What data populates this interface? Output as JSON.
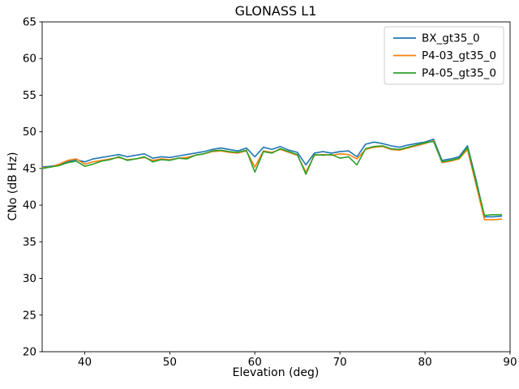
{
  "chart_data": {
    "type": "line",
    "title": "GLONASS L1",
    "xlabel": "Elevation (deg)",
    "ylabel": "CNo (dB Hz)",
    "xlim": [
      35,
      90
    ],
    "ylim": [
      20,
      65
    ],
    "xticks": [
      40,
      50,
      60,
      70,
      80,
      90
    ],
    "yticks": [
      20,
      25,
      30,
      35,
      40,
      45,
      50,
      55,
      60,
      65
    ],
    "grid": false,
    "legend_position": "upper right",
    "x": [
      35,
      36,
      37,
      38,
      39,
      40,
      41,
      42,
      43,
      44,
      45,
      46,
      47,
      48,
      49,
      50,
      51,
      52,
      53,
      54,
      55,
      56,
      57,
      58,
      59,
      60,
      61,
      62,
      63,
      64,
      65,
      66,
      67,
      68,
      69,
      70,
      71,
      72,
      73,
      74,
      75,
      76,
      77,
      78,
      79,
      80,
      81,
      82,
      83,
      84,
      85,
      86,
      87,
      88,
      89
    ],
    "series": [
      {
        "name": "BX_gt35_0",
        "color": "#1f77b4",
        "values": [
          45.2,
          45.3,
          45.5,
          45.9,
          46.2,
          45.9,
          46.3,
          46.5,
          46.7,
          46.9,
          46.6,
          46.8,
          47.0,
          46.4,
          46.6,
          46.5,
          46.7,
          46.9,
          47.1,
          47.3,
          47.6,
          47.8,
          47.6,
          47.4,
          47.8,
          46.6,
          47.9,
          47.6,
          48.0,
          47.5,
          47.2,
          45.5,
          47.1,
          47.3,
          47.1,
          47.3,
          47.4,
          46.6,
          48.3,
          48.6,
          48.4,
          48.1,
          47.9,
          48.2,
          48.4,
          48.6,
          49.0,
          46.1,
          46.3,
          46.6,
          48.1,
          43.5,
          38.4,
          38.4,
          38.5
        ]
      },
      {
        "name": "P4-03_gt35_0",
        "color": "#ff7f0e",
        "values": [
          45.1,
          45.2,
          45.6,
          46.1,
          46.3,
          45.6,
          45.9,
          46.1,
          46.3,
          46.5,
          46.2,
          46.3,
          46.5,
          46.1,
          46.3,
          46.2,
          46.4,
          46.5,
          46.8,
          47.0,
          47.3,
          47.4,
          47.2,
          47.1,
          47.4,
          45.2,
          47.4,
          47.2,
          47.6,
          47.2,
          46.8,
          44.5,
          46.8,
          46.9,
          46.8,
          47.0,
          46.9,
          46.3,
          47.6,
          47.9,
          48.0,
          47.6,
          47.5,
          47.8,
          48.1,
          48.4,
          48.8,
          45.8,
          46.0,
          46.3,
          47.6,
          42.8,
          38.0,
          38.0,
          38.1
        ]
      },
      {
        "name": "P4-05_gt35_0",
        "color": "#2ca02c",
        "values": [
          45.0,
          45.2,
          45.4,
          45.8,
          46.0,
          45.3,
          45.6,
          46.0,
          46.2,
          46.6,
          46.1,
          46.3,
          46.6,
          45.9,
          46.2,
          46.1,
          46.4,
          46.3,
          46.8,
          47.0,
          47.4,
          47.5,
          47.3,
          47.2,
          47.5,
          44.5,
          47.3,
          47.1,
          47.7,
          47.3,
          46.9,
          44.2,
          46.9,
          46.8,
          46.9,
          46.4,
          46.6,
          45.5,
          47.7,
          48.0,
          48.1,
          47.7,
          47.6,
          47.9,
          48.2,
          48.5,
          48.7,
          45.9,
          46.1,
          46.4,
          47.9,
          43.2,
          38.6,
          38.7,
          38.7
        ]
      }
    ]
  }
}
